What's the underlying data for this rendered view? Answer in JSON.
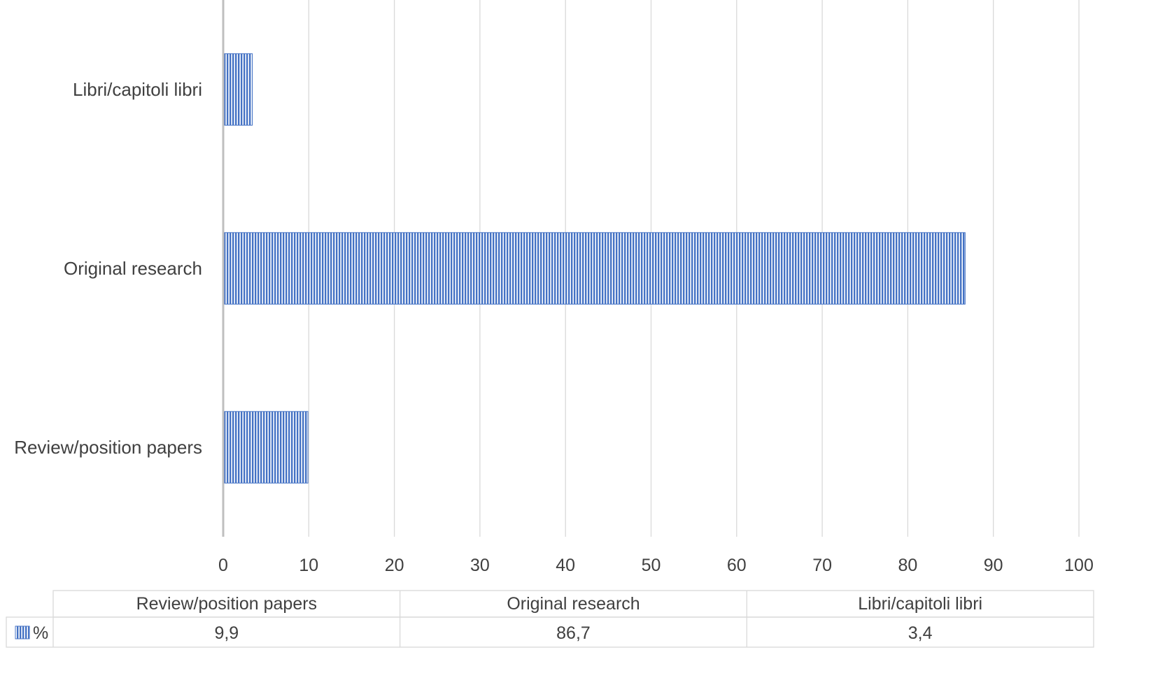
{
  "chart_data": {
    "type": "bar",
    "orientation": "horizontal",
    "categories": [
      "Review/position papers",
      "Original research",
      "Libri/capitoli libri"
    ],
    "series": [
      {
        "name": "%",
        "values": [
          9.9,
          86.7,
          3.4
        ],
        "display_values": [
          "9,9",
          "86,7",
          "3,4"
        ]
      }
    ],
    "xlim": [
      0,
      100
    ],
    "x_ticks": [
      0,
      10,
      20,
      30,
      40,
      50,
      60,
      70,
      80,
      90,
      100
    ],
    "grid": "vertical",
    "data_table": true,
    "bar_color": "#4472C4",
    "bar_pattern": "vertical-lines"
  }
}
